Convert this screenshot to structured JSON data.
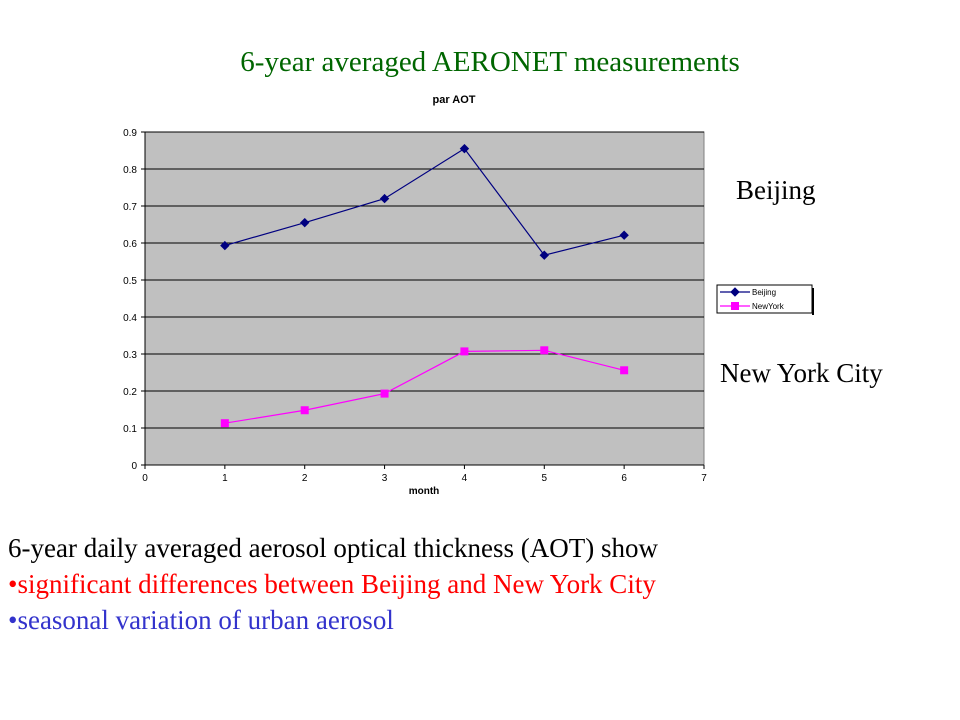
{
  "slide": {
    "title": "6-year averaged AERONET measurements",
    "label_beijing": "Beijing",
    "label_nyc": "New York City",
    "intro": "6-year daily averaged aerosol optical thickness (AOT) show",
    "bullet_1": "•significant differences between Beijing and New York City",
    "bullet_2": "•seasonal variation of urban aerosol"
  },
  "chart_data": {
    "type": "line",
    "title": "par AOT",
    "xlabel": "month",
    "ylabel": "",
    "xlim": [
      0,
      7
    ],
    "ylim": [
      0,
      0.9
    ],
    "x_ticks": [
      "0",
      "1",
      "2",
      "3",
      "4",
      "5",
      "6",
      "7"
    ],
    "y_ticks": [
      "0",
      "0.1",
      "0.2",
      "0.3",
      "0.4",
      "0.5",
      "0.6",
      "0.7",
      "0.8",
      "0.9"
    ],
    "grid": true,
    "plot_background": "#c0c0c0",
    "legend_position": "right",
    "series": [
      {
        "name": "Beijing",
        "color": "#000080",
        "marker": "diamond",
        "x": [
          1,
          2,
          3,
          4,
          5,
          6
        ],
        "values": [
          0.593,
          0.655,
          0.72,
          0.855,
          0.567,
          0.621
        ]
      },
      {
        "name": "NewYork",
        "color": "#ff00ff",
        "marker": "square",
        "x": [
          1,
          2,
          3,
          4,
          5,
          6
        ],
        "values": [
          0.113,
          0.148,
          0.193,
          0.307,
          0.31,
          0.256
        ]
      }
    ]
  }
}
